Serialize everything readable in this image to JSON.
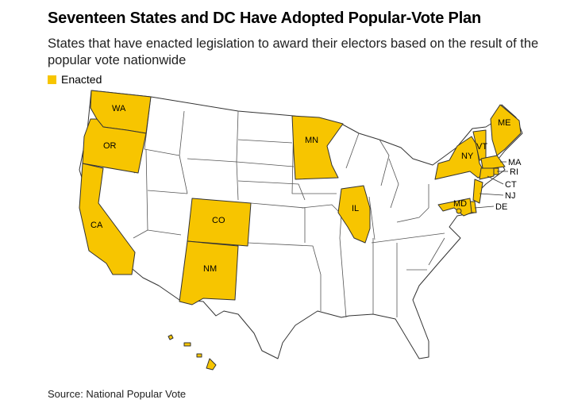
{
  "title": "Seventeen States and DC Have Adopted Popular-Vote Plan",
  "subtitle": "States that have enacted legislation to award their electors based on the result of the popular vote nationwide",
  "legend": {
    "label": "Enacted"
  },
  "source": "Source: National Popular Vote",
  "colors": {
    "enacted": "#f7c500",
    "not_enacted": "#ffffff",
    "border": "#333333"
  },
  "states": {
    "WA": "WA",
    "OR": "OR",
    "CA": "CA",
    "CO": "CO",
    "NM": "NM",
    "MN": "MN",
    "IL": "IL",
    "NY": "NY",
    "VT": "VT",
    "ME": "ME",
    "MA": "MA",
    "RI": "RI",
    "CT": "CT",
    "NJ": "NJ",
    "DE": "DE",
    "MD": "MD",
    "HI": "HI",
    "DC": "DC"
  },
  "enacted_states": [
    "WA",
    "OR",
    "CA",
    "CO",
    "NM",
    "MN",
    "IL",
    "NY",
    "VT",
    "ME",
    "MA",
    "RI",
    "CT",
    "NJ",
    "DE",
    "MD",
    "HI",
    "DC"
  ]
}
